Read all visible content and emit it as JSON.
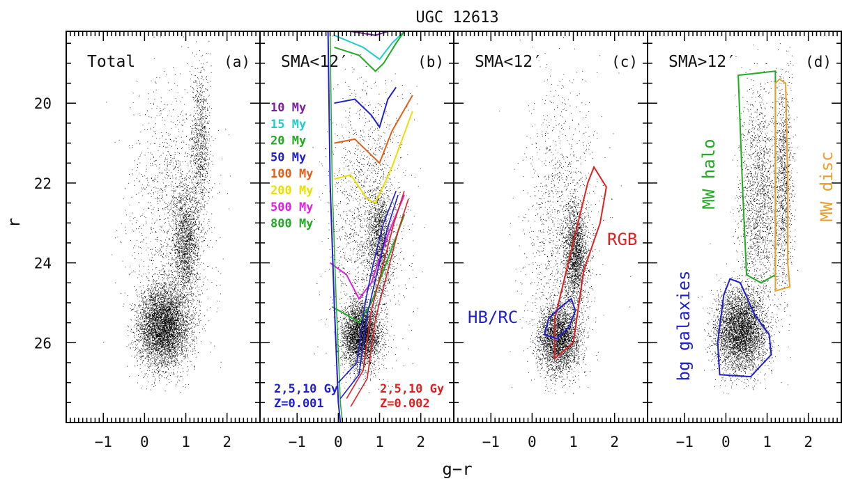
{
  "chart_data": {
    "type": "scatter",
    "title": "UGC 12613",
    "xlabel": "g−r",
    "ylabel": "r",
    "xlim": [
      -1.9,
      2.8
    ],
    "ylim": [
      28.0,
      18.2
    ],
    "y_inverted": true,
    "x_ticks": [
      "−1",
      "0",
      "1",
      "2"
    ],
    "x_tick_values": [
      -1,
      0,
      1,
      2
    ],
    "y_ticks": [
      "20",
      "22",
      "24",
      "26"
    ],
    "y_tick_values": [
      20,
      22,
      24,
      26
    ],
    "panels": [
      {
        "id": "a",
        "label": "Total",
        "tag": "(a)",
        "density_regions": [
          {
            "center": [
              0.45,
              25.6
            ],
            "spread": [
              0.55,
              0.9
            ],
            "weight": 0.55
          },
          {
            "center": [
              1.0,
              23.5
            ],
            "spread": [
              0.3,
              1.4
            ],
            "weight": 0.2
          },
          {
            "center": [
              1.35,
              21.0
            ],
            "spread": [
              0.2,
              1.6
            ],
            "weight": 0.1
          },
          {
            "center": [
              0.6,
              23.0
            ],
            "spread": [
              0.9,
              3.2
            ],
            "weight": 0.15
          }
        ]
      },
      {
        "id": "b",
        "label": "SMA<12′",
        "tag": "(b)",
        "isochrone_labels": [
          {
            "text": "10 My",
            "color": "#7B1FA2"
          },
          {
            "text": "15 My",
            "color": "#22CCCC"
          },
          {
            "text": "20 My",
            "color": "#22AA22"
          },
          {
            "text": "50 My",
            "color": "#1F1FD0"
          },
          {
            "text": "100 My",
            "color": "#E0601A"
          },
          {
            "text": "200 My",
            "color": "#EEDD00"
          },
          {
            "text": "500 My",
            "color": "#E020E0"
          },
          {
            "text": "800 My",
            "color": "#22AA22"
          }
        ],
        "old_labels": [
          {
            "lines": [
              "2,5,10 Gy",
              "Z=0.001"
            ],
            "color": "#1F1FD0"
          },
          {
            "lines": [
              "2,5,10 Gy",
              "Z=0.002"
            ],
            "color": "#E02020"
          }
        ],
        "isochrones": [
          {
            "age": "10 My",
            "color": "#7B1FA2",
            "points": [
              [
                -0.05,
                18.2
              ],
              [
                0.3,
                18.2
              ],
              [
                0.9,
                18.3
              ],
              [
                1.2,
                18.2
              ]
            ]
          },
          {
            "age": "15 My",
            "color": "#22CCCC",
            "points": [
              [
                -0.1,
                18.3
              ],
              [
                0.6,
                18.6
              ],
              [
                1.0,
                18.9
              ],
              [
                1.3,
                18.5
              ],
              [
                1.6,
                18.2
              ]
            ]
          },
          {
            "age": "20 My",
            "color": "#22AA22",
            "points": [
              [
                -0.1,
                18.6
              ],
              [
                0.5,
                18.8
              ],
              [
                0.9,
                19.2
              ],
              [
                1.1,
                19.0
              ],
              [
                1.4,
                18.5
              ],
              [
                1.6,
                18.2
              ]
            ]
          },
          {
            "age": "50 My",
            "color": "#1F1FD0",
            "points": [
              [
                -0.1,
                20.0
              ],
              [
                0.4,
                19.9
              ],
              [
                0.8,
                20.3
              ],
              [
                1.0,
                20.6
              ],
              [
                1.2,
                19.9
              ],
              [
                1.4,
                19.6
              ]
            ]
          },
          {
            "age": "100 My",
            "color": "#E0601A",
            "points": [
              [
                -0.1,
                21.0
              ],
              [
                0.4,
                20.9
              ],
              [
                0.8,
                21.3
              ],
              [
                1.0,
                21.5
              ],
              [
                1.3,
                20.7
              ],
              [
                1.8,
                19.8
              ]
            ]
          },
          {
            "age": "200 My",
            "color": "#EEDD00",
            "points": [
              [
                -0.1,
                21.9
              ],
              [
                0.3,
                21.8
              ],
              [
                0.7,
                22.4
              ],
              [
                0.9,
                22.5
              ],
              [
                1.3,
                21.6
              ],
              [
                1.8,
                20.2
              ]
            ]
          },
          {
            "age": "500 My",
            "color": "#E020E0",
            "points": [
              [
                -0.2,
                24.0
              ],
              [
                0.2,
                24.3
              ],
              [
                0.5,
                24.9
              ],
              [
                0.8,
                24.5
              ],
              [
                1.2,
                23.3
              ],
              [
                1.6,
                22.3
              ]
            ]
          },
          {
            "age": "800 My",
            "color": "#22AA22",
            "points": [
              [
                -0.15,
                25.1
              ],
              [
                0.2,
                25.3
              ],
              [
                0.5,
                25.5
              ],
              [
                0.8,
                25.0
              ],
              [
                1.2,
                23.9
              ],
              [
                1.6,
                22.8
              ]
            ]
          }
        ],
        "old_isochrones": [
          {
            "color": "#1F1FD0",
            "points": [
              [
                0.0,
                27.0
              ],
              [
                0.45,
                26.5
              ],
              [
                0.65,
                25.0
              ],
              [
                0.85,
                24.0
              ],
              [
                1.1,
                23.0
              ],
              [
                1.4,
                22.2
              ]
            ]
          },
          {
            "color": "#1F1FD0",
            "points": [
              [
                0.05,
                27.4
              ],
              [
                0.5,
                26.8
              ],
              [
                0.7,
                25.3
              ],
              [
                0.95,
                24.2
              ],
              [
                1.2,
                23.1
              ],
              [
                1.45,
                22.3
              ]
            ]
          },
          {
            "color": "#E02020",
            "points": [
              [
                0.2,
                27.4
              ],
              [
                0.6,
                26.7
              ],
              [
                0.8,
                25.2
              ],
              [
                1.1,
                24.0
              ],
              [
                1.35,
                23.0
              ],
              [
                1.6,
                22.2
              ]
            ]
          },
          {
            "color": "#E02020",
            "points": [
              [
                0.3,
                27.6
              ],
              [
                0.7,
                26.9
              ],
              [
                0.9,
                25.4
              ],
              [
                1.2,
                24.2
              ],
              [
                1.45,
                23.2
              ],
              [
                1.7,
                22.4
              ]
            ]
          }
        ],
        "density_regions": [
          {
            "center": [
              0.55,
              25.8
            ],
            "spread": [
              0.4,
              0.7
            ],
            "weight": 0.55
          },
          {
            "center": [
              1.0,
              23.5
            ],
            "spread": [
              0.25,
              1.2
            ],
            "weight": 0.2
          },
          {
            "center": [
              0.7,
              23.0
            ],
            "spread": [
              0.8,
              3.0
            ],
            "weight": 0.25
          }
        ]
      },
      {
        "id": "c",
        "label": "SMA<12′",
        "tag": "(c)",
        "regions": [
          {
            "name": "RGB",
            "color": "#E02020",
            "points": [
              [
                0.55,
                26.4
              ],
              [
                1.0,
                26.0
              ],
              [
                1.25,
                24.2
              ],
              [
                1.65,
                23.0
              ],
              [
                1.8,
                22.1
              ],
              [
                1.5,
                21.6
              ],
              [
                1.35,
                22.0
              ],
              [
                0.9,
                23.9
              ],
              [
                0.55,
                25.4
              ]
            ]
          },
          {
            "name": "HB/RC",
            "color": "#1F1FD0",
            "points": [
              [
                0.3,
                25.8
              ],
              [
                0.6,
                25.9
              ],
              [
                0.9,
                25.6
              ],
              [
                1.05,
                25.2
              ],
              [
                0.95,
                24.9
              ],
              [
                0.7,
                25.1
              ],
              [
                0.4,
                25.4
              ]
            ]
          }
        ],
        "density_regions": [
          {
            "center": [
              0.65,
              25.9
            ],
            "spread": [
              0.45,
              0.75
            ],
            "weight": 0.5
          },
          {
            "center": [
              1.05,
              23.8
            ],
            "spread": [
              0.25,
              1.1
            ],
            "weight": 0.3
          },
          {
            "center": [
              0.7,
              23.0
            ],
            "spread": [
              0.8,
              3.0
            ],
            "weight": 0.2
          }
        ]
      },
      {
        "id": "d",
        "label": "SMA>12′",
        "tag": "(d)",
        "regions": [
          {
            "name": "MW halo",
            "color": "#22AA22",
            "points": [
              [
                0.3,
                19.3
              ],
              [
                1.2,
                19.2
              ],
              [
                1.2,
                24.3
              ],
              [
                0.85,
                24.5
              ],
              [
                0.5,
                24.3
              ],
              [
                0.4,
                22.0
              ]
            ]
          },
          {
            "name": "MW disc",
            "color": "#E8A030",
            "points": [
              [
                1.3,
                19.4
              ],
              [
                1.45,
                19.5
              ],
              [
                1.5,
                22.0
              ],
              [
                1.5,
                24.0
              ],
              [
                1.55,
                24.6
              ],
              [
                1.2,
                24.7
              ],
              [
                1.2,
                19.5
              ]
            ]
          },
          {
            "name": "bg galaxies",
            "color": "#1F1FD0",
            "points": [
              [
                -0.15,
                26.8
              ],
              [
                0.6,
                26.85
              ],
              [
                1.1,
                26.3
              ],
              [
                1.05,
                25.8
              ],
              [
                0.7,
                25.3
              ],
              [
                0.35,
                24.5
              ],
              [
                0.1,
                24.4
              ],
              [
                -0.05,
                24.8
              ],
              [
                -0.2,
                26.0
              ]
            ]
          }
        ],
        "density_regions": [
          {
            "center": [
              0.35,
              25.7
            ],
            "spread": [
              0.55,
              0.9
            ],
            "weight": 0.6
          },
          {
            "center": [
              0.8,
              22.5
            ],
            "spread": [
              0.45,
              2.4
            ],
            "weight": 0.25
          },
          {
            "center": [
              1.4,
              22.0
            ],
            "spread": [
              0.2,
              2.4
            ],
            "weight": 0.15
          }
        ]
      }
    ],
    "region_labels": {
      "RGB": "RGB",
      "HB/RC": "HB/RC",
      "MW halo": "MW halo",
      "MW disc": "MW disc",
      "bg galaxies": "bg galaxies"
    }
  }
}
